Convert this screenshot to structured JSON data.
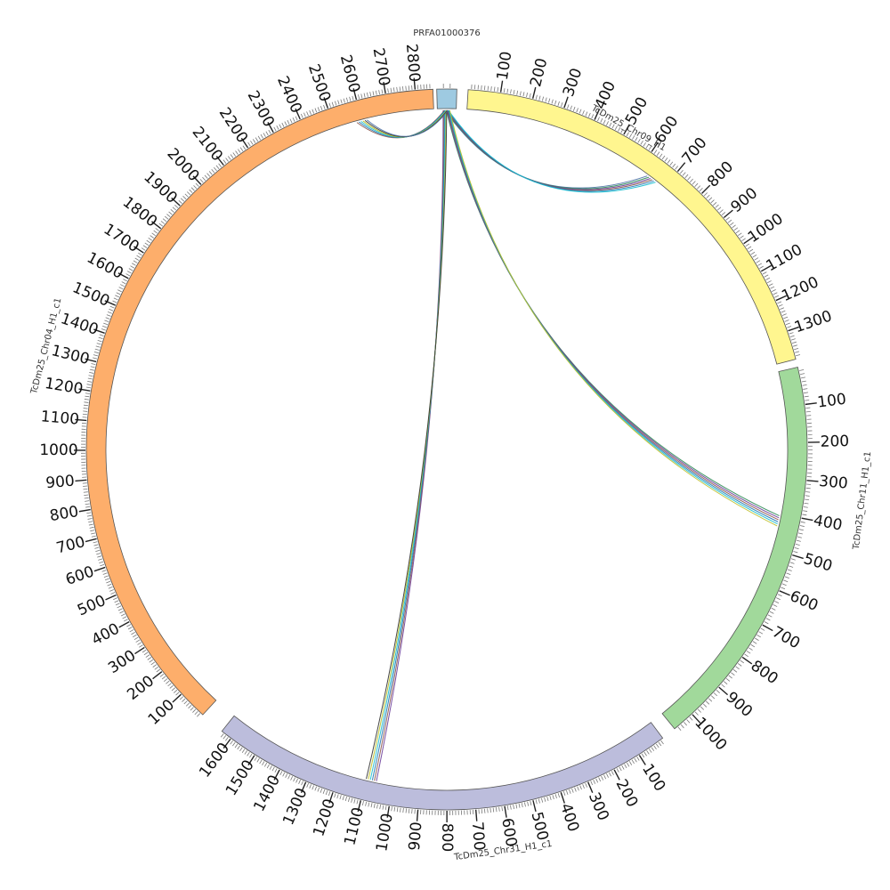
{
  "chart_data": {
    "type": "chord",
    "chromosomes": [
      {
        "name": "PRFA01000376",
        "length": 30,
        "color": "#9ecae1",
        "labels": []
      },
      {
        "name": "TcDm25_Chr09_H1",
        "length": 1390,
        "color": "#fff68f",
        "labels": [
          "100",
          "200",
          "300",
          "400",
          "500",
          "600",
          "700",
          "800",
          "900",
          "1000",
          "1100",
          "1200",
          "1300"
        ]
      },
      {
        "name": "TcDm25_Chr11_H1_c1",
        "length": 1060,
        "color": "#a1d99b",
        "labels": [
          "100",
          "200",
          "300",
          "400",
          "500",
          "600",
          "700",
          "800",
          "900",
          "1000"
        ]
      },
      {
        "name": "TcDm25_Chr31_H1_c1",
        "length": 1640,
        "color": "#bcbddc",
        "labels": [
          "100",
          "200",
          "300",
          "400",
          "500",
          "600",
          "700",
          "800",
          "900",
          "1000",
          "1100",
          "1200",
          "1300",
          "1400",
          "1500",
          "1600"
        ]
      },
      {
        "name": "TcDm25_Chr04_H1_c1",
        "length": 2860,
        "color": "#fdae6b",
        "labels": [
          "100",
          "200",
          "300",
          "400",
          "500",
          "600",
          "700",
          "800",
          "900",
          "1000",
          "1100",
          "1200",
          "1300",
          "1400",
          "1500",
          "1600",
          "1700",
          "1800",
          "1900",
          "2000",
          "2100",
          "2200",
          "2300",
          "2400",
          "2500",
          "2600",
          "2700",
          "2800"
        ]
      }
    ],
    "links": [
      {
        "from": "PRFA01000376",
        "from_pos": 15,
        "to": "TcDm25_Chr09_H1",
        "to_pos": 650
      },
      {
        "from": "PRFA01000376",
        "from_pos": 17,
        "to": "TcDm25_Chr11_H1_c1",
        "to_pos": 420
      },
      {
        "from": "PRFA01000376",
        "from_pos": 12,
        "to": "TcDm25_Chr31_H1_c1",
        "to_pos": 1080
      },
      {
        "from": "PRFA01000376",
        "from_pos": 14,
        "to": "TcDm25_Chr04_H1_c1",
        "to_pos": 2600
      }
    ]
  }
}
